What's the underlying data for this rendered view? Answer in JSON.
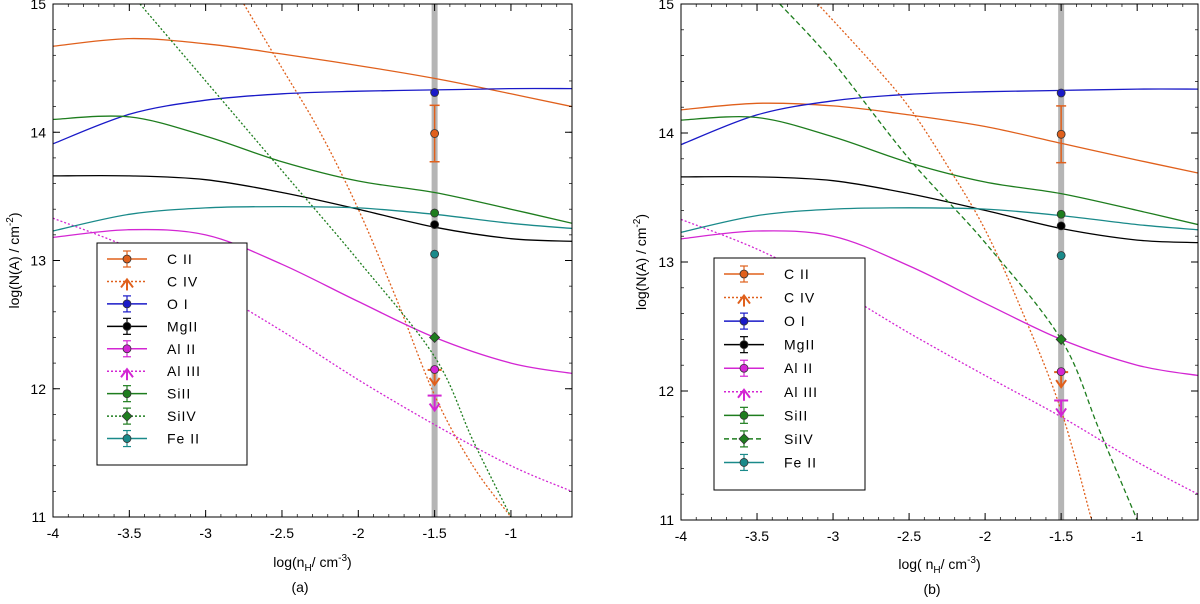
{
  "chart_data": [
    {
      "type": "line",
      "caption": "(a)",
      "xlabel": "log(n",
      "xlabel_sub": "H",
      "xlabel_tail": "/ cm",
      "xlabel_sup": "-3",
      "ylabel": "log(N(A) / cm",
      "ylabel_sup": "-2",
      "xlim": [
        -4,
        -0.6
      ],
      "ylim": [
        11,
        15
      ],
      "x_ticks": [
        -4,
        -3.5,
        -3,
        -2.5,
        -2,
        -1.5,
        -1
      ],
      "x_tick_labels": [
        "-4",
        "-3.5",
        "-3",
        "-2.5",
        "-2",
        "-1.5",
        "-1"
      ],
      "y_ticks": [
        11,
        12,
        13,
        14,
        15
      ],
      "y_tick_labels": [
        "11",
        "12",
        "13",
        "14",
        "15"
      ],
      "vline_x": -1.5,
      "legend_position": "lower-left",
      "series": [
        {
          "name": "C II",
          "color": "#e0601c",
          "dash": "solid",
          "marker": "circle",
          "x": [
            -4,
            -3.5,
            -3,
            -2.5,
            -2,
            -1.5,
            -1,
            -0.6
          ],
          "y": [
            14.67,
            14.73,
            14.69,
            14.61,
            14.52,
            14.42,
            14.3,
            14.2
          ],
          "obs": {
            "x": -1.5,
            "y": 13.99,
            "err_lo": 13.77,
            "err_hi": 14.21
          }
        },
        {
          "name": "C IV",
          "color": "#e0601c",
          "dash": "dotted",
          "marker": "arrow",
          "x": [
            -2.75,
            -2.5,
            -2.25,
            -2,
            -1.75,
            -1.5,
            -1.25,
            -1.0
          ],
          "y": [
            15.0,
            14.5,
            14.0,
            13.4,
            12.7,
            11.95,
            11.4,
            11.0
          ],
          "obs": {
            "x": -1.5,
            "y": 12.1,
            "limit": "upper"
          }
        },
        {
          "name": "O I",
          "color": "#1a1ac8",
          "dash": "solid",
          "marker": "circle",
          "x": [
            -4,
            -3.5,
            -3,
            -2.5,
            -2,
            -1.5,
            -1,
            -0.6
          ],
          "y": [
            13.91,
            14.14,
            14.25,
            14.3,
            14.32,
            14.33,
            14.34,
            14.34
          ],
          "obs": {
            "x": -1.5,
            "y": 14.31
          }
        },
        {
          "name": "MgII",
          "color": "#000000",
          "dash": "solid",
          "marker": "circle",
          "x": [
            -4,
            -3.5,
            -3,
            -2.5,
            -2,
            -1.5,
            -1,
            -0.6
          ],
          "y": [
            13.66,
            13.66,
            13.63,
            13.53,
            13.4,
            13.26,
            13.17,
            13.15
          ],
          "obs": {
            "x": -1.5,
            "y": 13.28
          }
        },
        {
          "name": "Al II",
          "color": "#d326d3",
          "dash": "solid",
          "marker": "circle",
          "x": [
            -4,
            -3.5,
            -3,
            -2.5,
            -2,
            -1.5,
            -1,
            -0.6
          ],
          "y": [
            13.18,
            13.24,
            13.2,
            12.97,
            12.68,
            12.4,
            12.2,
            12.12
          ],
          "obs": {
            "x": -1.5,
            "y": 12.15
          }
        },
        {
          "name": "Al III",
          "color": "#d326d3",
          "dash": "dotted",
          "marker": "arrow",
          "x": [
            -4,
            -3.5,
            -3,
            -2.5,
            -2,
            -1.5,
            -1,
            -0.6
          ],
          "y": [
            13.33,
            13.1,
            12.8,
            12.45,
            12.07,
            11.72,
            11.4,
            11.2
          ],
          "obs": {
            "x": -1.5,
            "y": 11.9,
            "limit": "upper"
          }
        },
        {
          "name": "SiII",
          "color": "#1e7d1e",
          "dash": "solid",
          "marker": "circle",
          "x": [
            -4,
            -3.5,
            -3,
            -2.5,
            -2,
            -1.5,
            -1,
            -0.6
          ],
          "y": [
            14.1,
            14.12,
            13.97,
            13.77,
            13.62,
            13.53,
            13.4,
            13.29
          ],
          "obs": {
            "x": -1.5,
            "y": 13.37
          }
        },
        {
          "name": "SiIV",
          "color": "#1e7d1e",
          "dash": "dotted",
          "marker": "diamond",
          "x": [
            -3.43,
            -3.0,
            -2.5,
            -2.0,
            -1.5,
            -1.25,
            -1.0
          ],
          "y": [
            15.0,
            14.4,
            13.7,
            13.0,
            12.25,
            11.6,
            11.0
          ],
          "obs": {
            "x": -1.5,
            "y": 12.4
          }
        },
        {
          "name": "Fe II",
          "color": "#1a8a8a",
          "dash": "solid",
          "marker": "circle",
          "x": [
            -4,
            -3.5,
            -3,
            -2.5,
            -2,
            -1.5,
            -1,
            -0.6
          ],
          "y": [
            13.23,
            13.36,
            13.41,
            13.42,
            13.41,
            13.36,
            13.29,
            13.25
          ],
          "obs": {
            "x": -1.5,
            "y": 13.05
          }
        }
      ]
    },
    {
      "type": "line",
      "caption": "(b)",
      "xlabel": "log( n",
      "xlabel_sub": "H",
      "xlabel_tail": "/ cm",
      "xlabel_sup": "-3",
      "ylabel": "log(N(A) / cm",
      "ylabel_sup": "-2",
      "xlim": [
        -4,
        -0.6
      ],
      "ylim": [
        11,
        15
      ],
      "x_ticks": [
        -4,
        -3.5,
        -3,
        -2.5,
        -2,
        -1.5,
        -1
      ],
      "x_tick_labels": [
        "-4",
        "-3.5",
        "-3",
        "-2.5",
        "-2",
        "-1.5",
        "-1"
      ],
      "y_ticks": [
        11,
        12,
        13,
        14,
        15
      ],
      "y_tick_labels": [
        "11",
        "12",
        "13",
        "14",
        "15"
      ],
      "vline_x": -1.5,
      "legend_position": "lower-left",
      "series": [
        {
          "name": "C II",
          "color": "#e0601c",
          "dash": "solid",
          "marker": "circle",
          "x": [
            -4,
            -3.5,
            -3,
            -2.5,
            -2,
            -1.5,
            -1,
            -0.6
          ],
          "y": [
            14.18,
            14.23,
            14.21,
            14.14,
            14.05,
            13.92,
            13.79,
            13.69
          ],
          "obs": {
            "x": -1.5,
            "y": 13.99,
            "err_lo": 13.77,
            "err_hi": 14.21
          }
        },
        {
          "name": "C IV",
          "color": "#e0601c",
          "dash": "dotted",
          "marker": "arrow",
          "x": [
            -3.1,
            -2.75,
            -2.5,
            -2.25,
            -2.0,
            -1.75,
            -1.5,
            -1.3
          ],
          "y": [
            15.0,
            14.55,
            14.2,
            13.75,
            13.25,
            12.6,
            11.85,
            11.0
          ],
          "obs": {
            "x": -1.5,
            "y": 12.1,
            "limit": "upper"
          }
        },
        {
          "name": "O I",
          "color": "#1a1ac8",
          "dash": "solid",
          "marker": "circle",
          "x": [
            -4,
            -3.5,
            -3,
            -2.5,
            -2,
            -1.5,
            -1,
            -0.6
          ],
          "y": [
            13.91,
            14.14,
            14.25,
            14.3,
            14.32,
            14.33,
            14.34,
            14.34
          ],
          "obs": {
            "x": -1.5,
            "y": 14.31
          }
        },
        {
          "name": "MgII",
          "color": "#000000",
          "dash": "solid",
          "marker": "circle",
          "x": [
            -4,
            -3.5,
            -3,
            -2.5,
            -2,
            -1.5,
            -1,
            -0.6
          ],
          "y": [
            13.66,
            13.66,
            13.63,
            13.53,
            13.4,
            13.26,
            13.17,
            13.15
          ],
          "obs": {
            "x": -1.5,
            "y": 13.28
          }
        },
        {
          "name": "Al II",
          "color": "#d326d3",
          "dash": "solid",
          "marker": "circle",
          "x": [
            -4,
            -3.5,
            -3,
            -2.5,
            -2,
            -1.5,
            -1,
            -0.6
          ],
          "y": [
            13.18,
            13.24,
            13.2,
            12.97,
            12.68,
            12.4,
            12.2,
            12.12
          ],
          "obs": {
            "x": -1.5,
            "y": 12.15
          }
        },
        {
          "name": "Al III",
          "color": "#d326d3",
          "dash": "dotted",
          "marker": "arrow",
          "x": [
            -4,
            -3.5,
            -3,
            -2.5,
            -2,
            -1.5,
            -1,
            -0.6
          ],
          "y": [
            13.33,
            13.1,
            12.8,
            12.45,
            12.12,
            11.8,
            11.45,
            11.2
          ],
          "obs": {
            "x": -1.5,
            "y": 11.88,
            "limit": "upper"
          }
        },
        {
          "name": "SiII",
          "color": "#1e7d1e",
          "dash": "solid",
          "marker": "circle",
          "x": [
            -4,
            -3.5,
            -3,
            -2.5,
            -2,
            -1.5,
            -1,
            -0.6
          ],
          "y": [
            14.1,
            14.12,
            13.97,
            13.77,
            13.62,
            13.53,
            13.4,
            13.29
          ],
          "obs": {
            "x": -1.5,
            "y": 13.37
          }
        },
        {
          "name": "SiIV",
          "color": "#1e7d1e",
          "dash": "dashed",
          "marker": "diamond",
          "x": [
            -3.35,
            -3.0,
            -2.5,
            -2.0,
            -1.5,
            -1.25,
            -1.0
          ],
          "y": [
            15.0,
            14.55,
            13.8,
            13.15,
            12.4,
            11.7,
            11.0
          ],
          "obs": {
            "x": -1.5,
            "y": 12.4
          }
        },
        {
          "name": "Fe II",
          "color": "#1a8a8a",
          "dash": "solid",
          "marker": "circle",
          "x": [
            -4,
            -3.5,
            -3,
            -2.5,
            -2,
            -1.5,
            -1,
            -0.6
          ],
          "y": [
            13.23,
            13.36,
            13.41,
            13.42,
            13.41,
            13.36,
            13.29,
            13.25
          ],
          "obs": {
            "x": -1.5,
            "y": 13.05
          }
        }
      ]
    }
  ]
}
